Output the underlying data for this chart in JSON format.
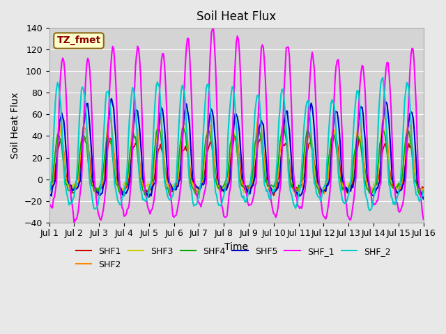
{
  "title": "Soil Heat Flux",
  "xlabel": "Time",
  "ylabel": "Soil Heat Flux",
  "ylim": [
    -40,
    140
  ],
  "xlim": [
    0,
    15
  ],
  "series_order": [
    "SHF1",
    "SHF2",
    "SHF3",
    "SHF4",
    "SHF5",
    "SHF_1",
    "SHF_2"
  ],
  "series": {
    "SHF1": {
      "color": "#cc0000",
      "lw": 1.2,
      "amplitude": 35,
      "phase": 0.05,
      "neg_amp": 12
    },
    "SHF2": {
      "color": "#ff8800",
      "lw": 1.2,
      "amplitude": 50,
      "phase": 0.08,
      "neg_amp": 10
    },
    "SHF3": {
      "color": "#cccc00",
      "lw": 1.2,
      "amplitude": 45,
      "phase": 0.1,
      "neg_amp": 9
    },
    "SHF4": {
      "color": "#00aa00",
      "lw": 1.2,
      "amplitude": 45,
      "phase": 0.12,
      "neg_amp": 11
    },
    "SHF5": {
      "color": "#0000cc",
      "lw": 1.5,
      "amplitude": 65,
      "phase": 0.0,
      "neg_amp": 13
    },
    "SHF_1": {
      "color": "#ff00ff",
      "lw": 1.5,
      "amplitude": 120,
      "phase": -0.05,
      "neg_amp": 30
    },
    "SHF_2": {
      "color": "#00cccc",
      "lw": 1.5,
      "amplitude": 80,
      "phase": 0.15,
      "neg_amp": 22
    }
  },
  "annotation_text": "TZ_fmet",
  "annotation_fontsize": 10,
  "background_color": "#e8e8e8",
  "plot_bg_color": "#d4d4d4",
  "grid_color": "#ffffff",
  "tick_label_size": 9,
  "n_days": 15,
  "yticks": [
    -40,
    -20,
    0,
    20,
    40,
    60,
    80,
    100,
    120,
    140
  ]
}
